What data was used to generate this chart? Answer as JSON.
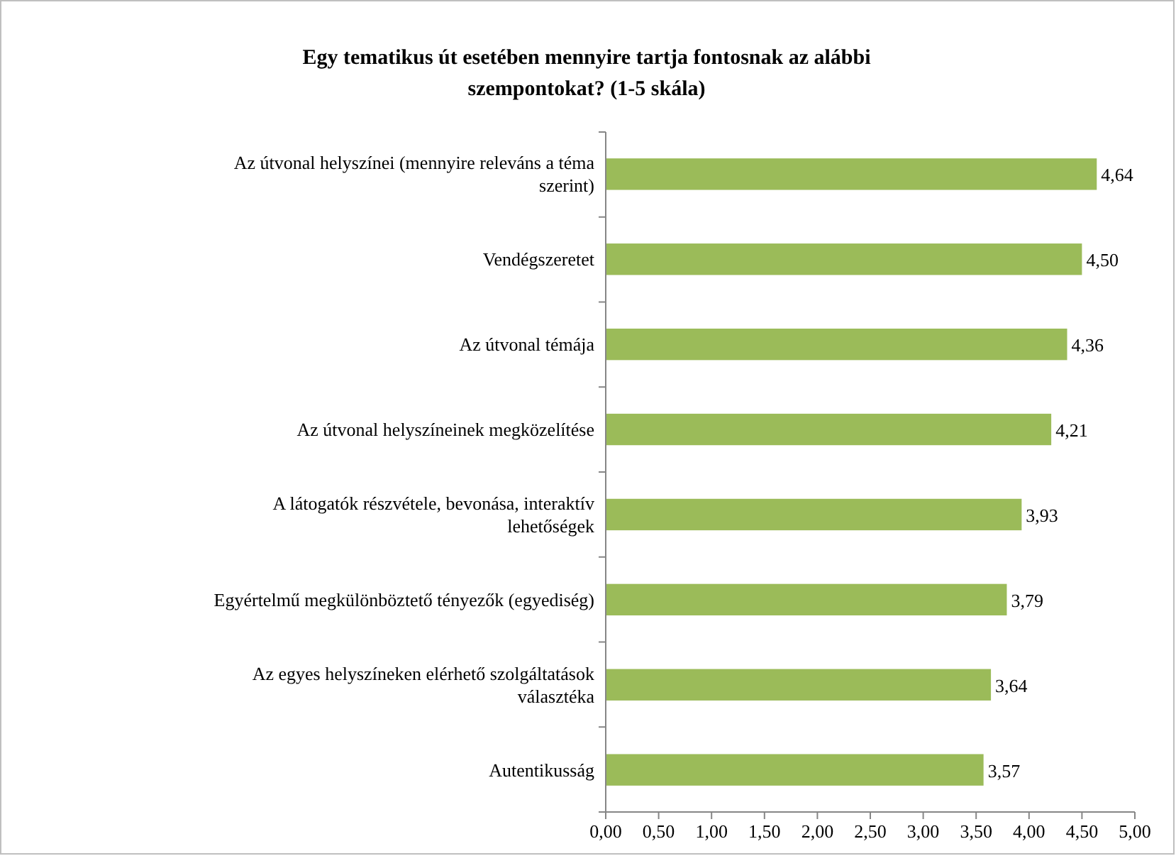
{
  "chart_data": {
    "type": "bar",
    "orientation": "horizontal",
    "title": "Egy tematikus út esetében mennyire tartja fontosnak az alábbi szempontokat? (1-5 skála)",
    "categories": [
      "Az útvonal helyszínei (mennyire releváns a téma szerint)",
      "Vendégszeretet",
      "Az útvonal témája",
      "Az útvonal helyszíneinek megközelítése",
      "A látogatók részvétele, bevonása, interaktív lehetőségek",
      "Egyértelmű megkülönböztető tényezők (egyediség)",
      "Az egyes helyszíneken elérhető szolgáltatások választéka",
      "Autentikusság"
    ],
    "values": [
      4.64,
      4.5,
      4.36,
      4.21,
      3.93,
      3.79,
      3.64,
      3.57
    ],
    "value_labels": [
      "4,64",
      "4,50",
      "4,36",
      "4,21",
      "3,93",
      "3,79",
      "3,64",
      "3,57"
    ],
    "color": "#9bbb59",
    "xlim": [
      0,
      5
    ],
    "xticks": [
      {
        "value": 0,
        "label": "0,00"
      },
      {
        "value": 0.5,
        "label": "0,50"
      },
      {
        "value": 1,
        "label": "1,00"
      },
      {
        "value": 1.5,
        "label": "1,50"
      },
      {
        "value": 2,
        "label": "2,00"
      },
      {
        "value": 2.5,
        "label": "2,50"
      },
      {
        "value": 3,
        "label": "3,00"
      },
      {
        "value": 3.5,
        "label": "3,50"
      },
      {
        "value": 4,
        "label": "4,00"
      },
      {
        "value": 4.5,
        "label": "4,50"
      },
      {
        "value": 5,
        "label": "5,00"
      }
    ],
    "grid": false,
    "legend": false
  }
}
